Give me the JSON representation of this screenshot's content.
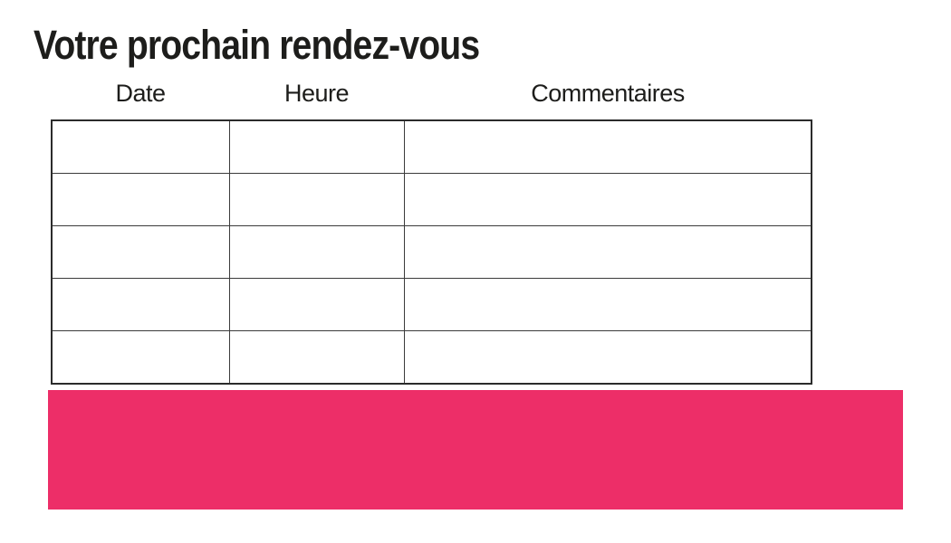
{
  "page": {
    "title": "Votre prochain rendez-vous",
    "background": "#ffffff"
  },
  "colors": {
    "title_text": "#1d1d1b",
    "header_text": "#1d1d1b",
    "table_border_inner": "#3b3b3b",
    "table_border_outer": "#2b2b2b",
    "banner": "#ED2E68"
  },
  "appointments_table": {
    "columns": [
      {
        "id": "date",
        "label": "Date"
      },
      {
        "id": "heure",
        "label": "Heure"
      },
      {
        "id": "commentaires",
        "label": "Commentaires"
      }
    ],
    "rows": [
      [
        "",
        "",
        ""
      ],
      [
        "",
        "",
        ""
      ],
      [
        "",
        "",
        ""
      ],
      [
        "",
        "",
        ""
      ],
      [
        "",
        "",
        ""
      ]
    ]
  }
}
